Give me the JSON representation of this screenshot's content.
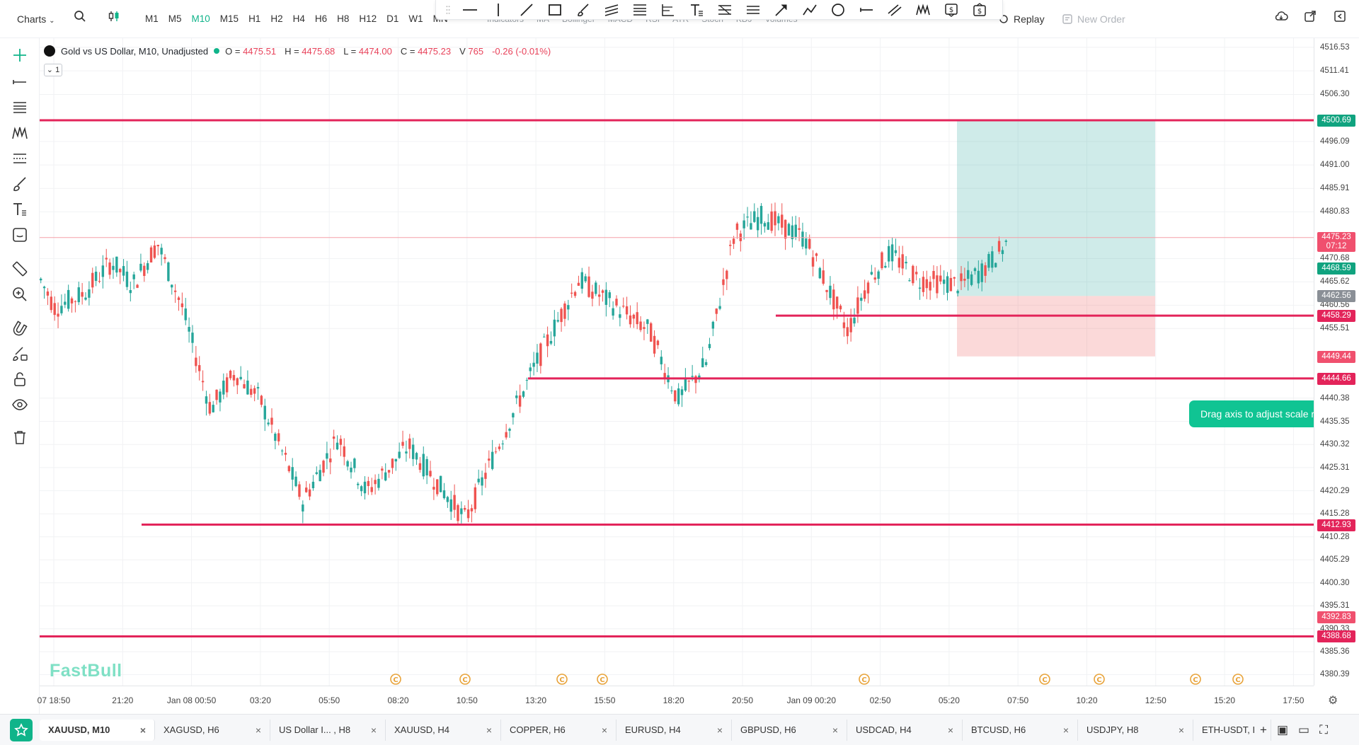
{
  "topbar": {
    "charts_label": "Charts",
    "timeframes": [
      "M1",
      "M5",
      "M10",
      "M15",
      "H1",
      "H2",
      "H4",
      "H6",
      "H8",
      "H12",
      "D1",
      "W1",
      "MN"
    ],
    "active_timeframe": "M10",
    "indicator_strip": [
      "Indicators",
      "MA",
      "Bollinger",
      "MACD",
      "RSI",
      "ATR",
      "Stoch",
      "KDJ",
      "Volumes"
    ],
    "replay_label": "Replay",
    "new_order_label": "New Order"
  },
  "legend": {
    "title": "Gold vs US Dollar, M10, Unadjusted",
    "open_key": "O =",
    "open": "4475.51",
    "high_key": "H =",
    "high": "4475.68",
    "low_key": "L =",
    "low": "4474.00",
    "close_key": "C =",
    "close": "4475.23",
    "vol_key": "V",
    "vol": "765",
    "change": "-0.26 (-0.01%)",
    "collapse_label": "1"
  },
  "watermark": "FastBull",
  "tooltip": "Drag axis to adjust scale ratio",
  "price_axis": {
    "min": 4378,
    "max": 4518.5,
    "ticks": [
      "4516.53",
      "4511.41",
      "4506.30",
      "4496.09",
      "4491.00",
      "4485.91",
      "4480.83",
      "4470.68",
      "4465.62",
      "4460.56",
      "4455.51",
      "4440.38",
      "4435.35",
      "4430.32",
      "4425.31",
      "4420.29",
      "4415.28",
      "4410.28",
      "4405.29",
      "4400.30",
      "4395.31",
      "4390.33",
      "4385.36",
      "4380.39"
    ],
    "labels": [
      {
        "price": "4500.69",
        "color": "#10a37f"
      },
      {
        "price": "4475.23",
        "sub": "07:12",
        "color": "#f0506e"
      },
      {
        "price": "4468.59",
        "color": "#10a37f"
      },
      {
        "price": "4462.56",
        "color": "#8a8f96"
      },
      {
        "price": "4458.29",
        "color": "#e3245a"
      },
      {
        "price": "4449.44",
        "color": "#f0506e"
      },
      {
        "price": "4444.66",
        "color": "#e3245a"
      },
      {
        "price": "4412.93",
        "color": "#e3245a"
      },
      {
        "price": "4392.83",
        "color": "#f0506e"
      },
      {
        "price": "4388.68",
        "color": "#e3245a"
      }
    ]
  },
  "time_axis": [
    "07 18:50",
    "21:20",
    "Jan 08 00:50",
    "03:20",
    "05:50",
    "08:20",
    "10:50",
    "13:20",
    "15:50",
    "18:20",
    "20:50",
    "Jan 09 00:20",
    "02:50",
    "05:20",
    "07:50",
    "10:20",
    "12:50",
    "15:20",
    "17:50"
  ],
  "horizontal_lines": [
    "4500.69",
    "4458.29",
    "4444.66",
    "4412.93",
    "4388.68"
  ],
  "position": {
    "take_profit": "4500.69",
    "entry": "4462.56",
    "stop_loss": "4449.44"
  },
  "tabs": [
    {
      "label": "XAUUSD, M10",
      "active": true
    },
    {
      "label": "XAGUSD, H6"
    },
    {
      "label": "US Dollar I... , H8"
    },
    {
      "label": "XAUUSD, H4"
    },
    {
      "label": "COPPER, H6"
    },
    {
      "label": "EURUSD, H4"
    },
    {
      "label": "GBPUSD, H6"
    },
    {
      "label": "USDCAD, H4"
    },
    {
      "label": "BTCUSD, H6"
    },
    {
      "label": "USDJPY, H8"
    },
    {
      "label": "ETH-USDT, I"
    }
  ],
  "colors": {
    "up": "#26a69a",
    "down": "#ef5350",
    "accent": "#10b48a",
    "line": "#e3245a"
  },
  "icons": [
    "search-icon",
    "candlestick-icon",
    "cloud-icon",
    "share-icon",
    "exit-icon",
    "crosshair-icon",
    "trendline-icon",
    "fib-icon",
    "pattern-icon",
    "channel-icon",
    "brush-icon",
    "text-icon",
    "emoji-icon",
    "ruler-icon",
    "zoom-icon",
    "magnet-icon",
    "lock-icon",
    "eye-icon",
    "trash-icon",
    "star-icon",
    "gear-icon"
  ]
}
